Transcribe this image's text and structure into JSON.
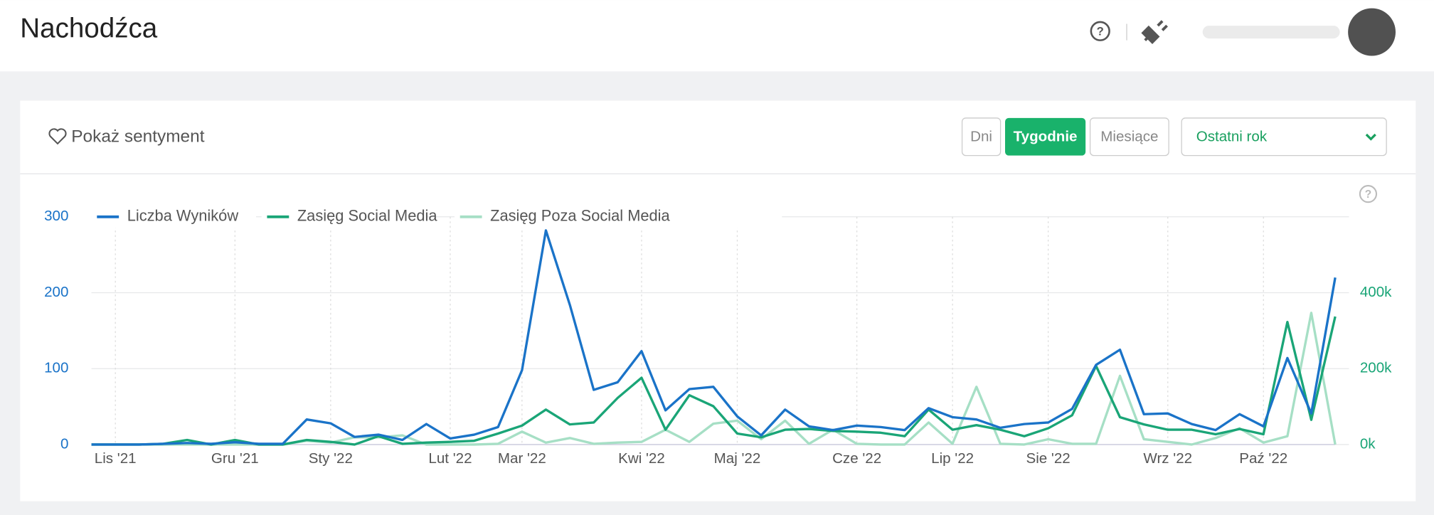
{
  "page": {
    "title": "Nachodźca",
    "sentiment": "Pokaż sentyment",
    "buttons": [
      "Dni",
      "Tygodnie",
      "Miesiące"
    ],
    "range": "Ostatni rok"
  },
  "chart_data": {
    "type": "line",
    "categories": [
      null,
      "Lis '21",
      null,
      null,
      null,
      null,
      "Gru '21",
      null,
      null,
      null,
      "Sty '22",
      null,
      null,
      null,
      null,
      "Lut '22",
      null,
      null,
      "Mar '22",
      null,
      null,
      null,
      null,
      "Kwi '22",
      null,
      null,
      null,
      "Maj '22",
      null,
      null,
      null,
      null,
      "Cze '22",
      null,
      null,
      null,
      "Lip '22",
      null,
      null,
      null,
      "Sie '22",
      null,
      null,
      null,
      null,
      "Wrz '22",
      null,
      null,
      null,
      "Paź '22",
      null,
      null,
      null
    ],
    "series": [
      {
        "name": "Liczba Wyników",
        "color": "#1a73c8",
        "values": [
          0,
          0,
          0,
          1,
          2,
          1,
          3,
          1,
          1,
          33,
          28,
          10,
          13,
          6,
          27,
          8,
          13,
          23,
          98,
          282,
          184,
          72,
          82,
          123,
          45,
          73,
          76,
          37,
          12,
          46,
          24,
          19,
          25,
          23,
          19,
          48,
          36,
          33,
          22,
          27,
          29,
          47,
          105,
          125,
          40,
          41,
          27,
          19,
          40,
          24,
          114,
          41,
          220
        ]
      },
      {
        "name": "Zasięg Social Media",
        "color": "#1aa577",
        "axis": "y2",
        "values": [
          0,
          0,
          0,
          2000,
          12000,
          0,
          12000,
          0,
          0,
          12000,
          7000,
          0,
          22000,
          2000,
          5000,
          7000,
          10000,
          29000,
          50000,
          92000,
          53000,
          58000,
          123000,
          176000,
          39000,
          130000,
          101000,
          29000,
          19000,
          39000,
          41000,
          36000,
          34000,
          31000,
          22000,
          92000,
          39000,
          51000,
          39000,
          22000,
          43000,
          77000,
          207000,
          72000,
          53000,
          39000,
          39000,
          27000,
          41000,
          27000,
          323000,
          65000,
          337000
        ]
      },
      {
        "name": "Zasięg Poza Social Media",
        "color": "#a6dfc5",
        "axis": "y2",
        "values": [
          0,
          0,
          0,
          0,
          0,
          0,
          0,
          0,
          0,
          10000,
          5000,
          19000,
          19000,
          24000,
          0,
          0,
          0,
          2000,
          34000,
          5000,
          17000,
          2000,
          5000,
          7000,
          39000,
          7000,
          55000,
          63000,
          14000,
          63000,
          2000,
          39000,
          2000,
          0,
          0,
          58000,
          2000,
          152000,
          2000,
          0,
          14000,
          2000,
          2000,
          181000,
          14000,
          7000,
          0,
          17000,
          43000,
          5000,
          22000,
          347000,
          0
        ]
      }
    ],
    "ylim": [
      0,
      300
    ],
    "yticks": [
      0,
      100,
      200,
      300
    ],
    "y2lim": [
      0,
      600000
    ],
    "y2ticks": [
      {
        "value": 0,
        "label": "0k"
      },
      {
        "value": 200000,
        "label": "200k"
      },
      {
        "value": 400000,
        "label": "400k"
      }
    ],
    "grid": true,
    "legend": "top-left"
  }
}
